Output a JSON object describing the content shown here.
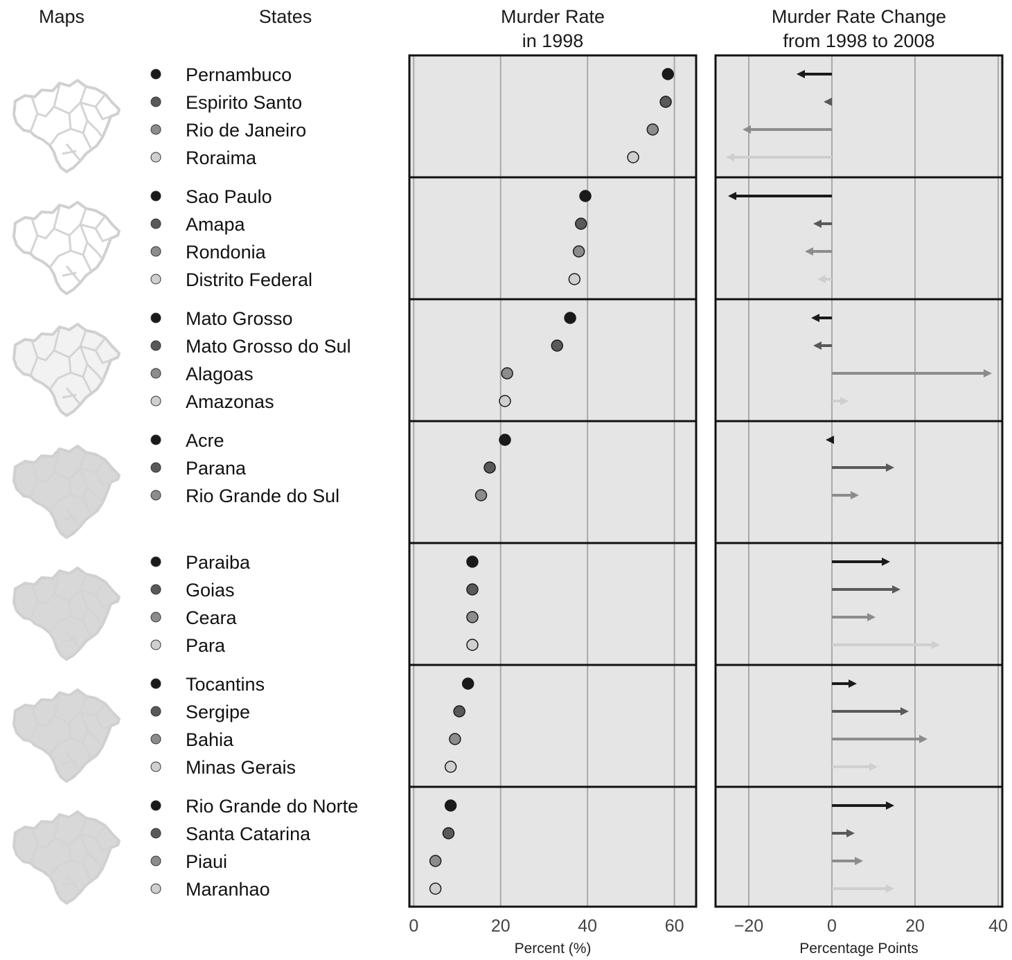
{
  "chart_data": {
    "type": "scatter",
    "column_headers": {
      "maps": "Maps",
      "states": "States",
      "rate_line1": "Murder Rate",
      "rate_line2": "in 1998",
      "change_line1": "Murder Rate Change",
      "change_line2": "from 1998 to 2008"
    },
    "panels": [
      {
        "name": "Murder Rate in 1998",
        "xlabel": "Percent (%)",
        "xlim": [
          -1,
          65
        ],
        "ticks": [
          {
            "v": 0,
            "label": "0"
          },
          {
            "v": 20,
            "label": "20"
          },
          {
            "v": 40,
            "label": "40"
          },
          {
            "v": 60,
            "label": "60"
          }
        ]
      },
      {
        "name": "Murder Rate Change from 1998 to 2008",
        "xlabel": "Percentage Points",
        "xlim": [
          -28,
          41
        ],
        "ticks": [
          {
            "v": -20,
            "label": "−20"
          },
          {
            "v": 0,
            "label": "0"
          },
          {
            "v": 20,
            "label": "20"
          },
          {
            "v": 40,
            "label": "40"
          }
        ]
      }
    ],
    "shade_colors": [
      "#1a1a1a",
      "#595959",
      "#8c8c8c",
      "#cfcfcf"
    ],
    "groups": [
      {
        "states": [
          {
            "name": "Pernambuco",
            "rate_1998": 58.5,
            "change": -8.5
          },
          {
            "name": "Espirito Santo",
            "rate_1998": 58.0,
            "change": -2.0
          },
          {
            "name": "Rio de Janeiro",
            "rate_1998": 55.0,
            "change": -21.5
          },
          {
            "name": "Roraima",
            "rate_1998": 50.5,
            "change": -25.5
          }
        ]
      },
      {
        "states": [
          {
            "name": "Sao Paulo",
            "rate_1998": 39.5,
            "change": -25.0
          },
          {
            "name": "Amapa",
            "rate_1998": 38.5,
            "change": -4.5
          },
          {
            "name": "Rondonia",
            "rate_1998": 38.0,
            "change": -6.5
          },
          {
            "name": "Distrito Federal",
            "rate_1998": 37.0,
            "change": -3.5
          }
        ]
      },
      {
        "states": [
          {
            "name": "Mato Grosso",
            "rate_1998": 36.0,
            "change": -5.0
          },
          {
            "name": "Mato Grosso do Sul",
            "rate_1998": 33.0,
            "change": -4.5
          },
          {
            "name": "Alagoas",
            "rate_1998": 21.5,
            "change": 38.5
          },
          {
            "name": "Amazonas",
            "rate_1998": 21.0,
            "change": 4.0
          }
        ]
      },
      {
        "states": [
          {
            "name": "Acre",
            "rate_1998": 21.0,
            "change": -1.5
          },
          {
            "name": "Parana",
            "rate_1998": 17.5,
            "change": 15.0
          },
          {
            "name": "Rio Grande do Sul",
            "rate_1998": 15.5,
            "change": 6.5
          }
        ]
      },
      {
        "states": [
          {
            "name": "Paraiba",
            "rate_1998": 13.5,
            "change": 14.0
          },
          {
            "name": "Goias",
            "rate_1998": 13.5,
            "change": 16.5
          },
          {
            "name": "Ceara",
            "rate_1998": 13.5,
            "change": 10.5
          },
          {
            "name": "Para",
            "rate_1998": 13.5,
            "change": 26.0
          }
        ]
      },
      {
        "states": [
          {
            "name": "Tocantins",
            "rate_1998": 12.5,
            "change": 6.0
          },
          {
            "name": "Sergipe",
            "rate_1998": 10.5,
            "change": 18.5
          },
          {
            "name": "Bahia",
            "rate_1998": 9.5,
            "change": 23.0
          },
          {
            "name": "Minas Gerais",
            "rate_1998": 8.5,
            "change": 11.0
          }
        ]
      },
      {
        "states": [
          {
            "name": "Rio Grande do Norte",
            "rate_1998": 8.5,
            "change": 15.0
          },
          {
            "name": "Santa Catarina",
            "rate_1998": 8.0,
            "change": 5.5
          },
          {
            "name": "Piaui",
            "rate_1998": 5.0,
            "change": 7.5
          },
          {
            "name": "Maranhao",
            "rate_1998": 5.0,
            "change": 15.0
          }
        ]
      }
    ]
  }
}
